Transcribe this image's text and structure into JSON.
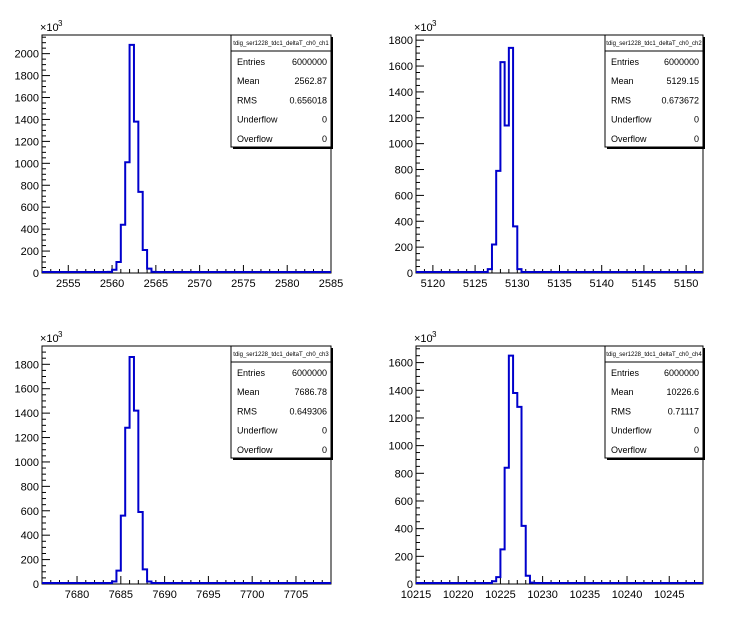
{
  "chart_data": [
    {
      "type": "histogram",
      "stats_title": "tdig_ser1228_tdc1_deltaT_ch0_ch1",
      "exponent_label": "×10",
      "exponent_power": "3",
      "xlim": [
        2552,
        2585
      ],
      "ylim": [
        0,
        2170
      ],
      "xticks": [
        2555,
        2560,
        2565,
        2570,
        2575,
        2580,
        2585
      ],
      "yticks": [
        0,
        200,
        400,
        600,
        800,
        1000,
        1200,
        1400,
        1600,
        1800,
        2000
      ],
      "bins": [
        {
          "x0": 2559.5,
          "x1": 2560.0,
          "y": 10
        },
        {
          "x0": 2560.0,
          "x1": 2560.5,
          "y": 30
        },
        {
          "x0": 2560.5,
          "x1": 2561.0,
          "y": 100
        },
        {
          "x0": 2561.0,
          "x1": 2561.5,
          "y": 440
        },
        {
          "x0": 2561.5,
          "x1": 2562.0,
          "y": 1010
        },
        {
          "x0": 2562.0,
          "x1": 2562.5,
          "y": 2080
        },
        {
          "x0": 2562.5,
          "x1": 2563.0,
          "y": 1380
        },
        {
          "x0": 2563.0,
          "x1": 2563.5,
          "y": 740
        },
        {
          "x0": 2563.5,
          "x1": 2564.0,
          "y": 210
        },
        {
          "x0": 2564.0,
          "x1": 2564.5,
          "y": 40
        },
        {
          "x0": 2564.5,
          "x1": 2565.0,
          "y": 10
        }
      ],
      "stats": [
        {
          "label": "Entries",
          "value": "6000000"
        },
        {
          "label": "Mean",
          "value": "2562.87"
        },
        {
          "label": "RMS",
          "value": "0.656018"
        },
        {
          "label": "Underflow",
          "value": "0"
        },
        {
          "label": "Overflow",
          "value": "0"
        }
      ]
    },
    {
      "type": "histogram",
      "stats_title": "tdig_ser1228_tdc1_deltaT_ch0_ch2",
      "exponent_label": "×10",
      "exponent_power": "3",
      "xlim": [
        5118,
        5152
      ],
      "ylim": [
        0,
        1840
      ],
      "xticks": [
        5120,
        5125,
        5130,
        5135,
        5140,
        5145,
        5150
      ],
      "yticks": [
        0,
        200,
        400,
        600,
        800,
        1000,
        1200,
        1400,
        1600,
        1800
      ],
      "bins": [
        {
          "x0": 5126.5,
          "x1": 5127.0,
          "y": 30
        },
        {
          "x0": 5127.0,
          "x1": 5127.5,
          "y": 220
        },
        {
          "x0": 5127.5,
          "x1": 5128.0,
          "y": 790
        },
        {
          "x0": 5128.0,
          "x1": 5128.5,
          "y": 1630
        },
        {
          "x0": 5128.5,
          "x1": 5129.0,
          "y": 1140
        },
        {
          "x0": 5129.0,
          "x1": 5129.5,
          "y": 1740
        },
        {
          "x0": 5129.5,
          "x1": 5130.0,
          "y": 360
        },
        {
          "x0": 5130.0,
          "x1": 5130.5,
          "y": 30
        }
      ],
      "stats": [
        {
          "label": "Entries",
          "value": "6000000"
        },
        {
          "label": "Mean",
          "value": "5129.15"
        },
        {
          "label": "RMS",
          "value": "0.673672"
        },
        {
          "label": "Underflow",
          "value": "0"
        },
        {
          "label": "Overflow",
          "value": "0"
        }
      ]
    },
    {
      "type": "histogram",
      "stats_title": "tdig_ser1228_tdc1_deltaT_ch0_ch3",
      "exponent_label": "×10",
      "exponent_power": "3",
      "xlim": [
        7676,
        7709
      ],
      "ylim": [
        0,
        1950
      ],
      "xticks": [
        7680,
        7685,
        7690,
        7695,
        7700,
        7705
      ],
      "yticks": [
        0,
        200,
        400,
        600,
        800,
        1000,
        1200,
        1400,
        1600,
        1800
      ],
      "bins": [
        {
          "x0": 7684.0,
          "x1": 7684.5,
          "y": 20
        },
        {
          "x0": 7684.5,
          "x1": 7685.0,
          "y": 110
        },
        {
          "x0": 7685.0,
          "x1": 7685.5,
          "y": 560
        },
        {
          "x0": 7685.5,
          "x1": 7686.0,
          "y": 1280
        },
        {
          "x0": 7686.0,
          "x1": 7686.5,
          "y": 1860
        },
        {
          "x0": 7686.5,
          "x1": 7687.0,
          "y": 1420
        },
        {
          "x0": 7687.0,
          "x1": 7687.5,
          "y": 590
        },
        {
          "x0": 7687.5,
          "x1": 7688.0,
          "y": 120
        },
        {
          "x0": 7688.0,
          "x1": 7688.5,
          "y": 20
        }
      ],
      "stats": [
        {
          "label": "Entries",
          "value": "6000000"
        },
        {
          "label": "Mean",
          "value": "7686.78"
        },
        {
          "label": "RMS",
          "value": "0.649306"
        },
        {
          "label": "Underflow",
          "value": "0"
        },
        {
          "label": "Overflow",
          "value": "0"
        }
      ]
    },
    {
      "type": "histogram",
      "stats_title": "tdig_ser1228_tdc1_deltaT_ch0_ch4",
      "exponent_label": "×10",
      "exponent_power": "3",
      "xlim": [
        10215,
        10249
      ],
      "ylim": [
        0,
        1720
      ],
      "xticks": [
        10215,
        10220,
        10225,
        10230,
        10235,
        10240,
        10245
      ],
      "yticks": [
        0,
        200,
        400,
        600,
        800,
        1000,
        1200,
        1400,
        1600
      ],
      "bins": [
        {
          "x0": 10224.0,
          "x1": 10224.5,
          "y": 20
        },
        {
          "x0": 10224.5,
          "x1": 10225.0,
          "y": 50
        },
        {
          "x0": 10225.0,
          "x1": 10225.5,
          "y": 250
        },
        {
          "x0": 10225.5,
          "x1": 10226.0,
          "y": 840
        },
        {
          "x0": 10226.0,
          "x1": 10226.5,
          "y": 1650
        },
        {
          "x0": 10226.5,
          "x1": 10227.0,
          "y": 1380
        },
        {
          "x0": 10227.0,
          "x1": 10227.5,
          "y": 1280
        },
        {
          "x0": 10227.5,
          "x1": 10228.0,
          "y": 420
        },
        {
          "x0": 10228.0,
          "x1": 10228.5,
          "y": 60
        },
        {
          "x0": 10228.5,
          "x1": 10229.0,
          "y": 10
        }
      ],
      "stats": [
        {
          "label": "Entries",
          "value": "6000000"
        },
        {
          "label": "Mean",
          "value": "10226.6"
        },
        {
          "label": "RMS",
          "value": "0.71117"
        },
        {
          "label": "Underflow",
          "value": "0"
        },
        {
          "label": "Overflow",
          "value": "0"
        }
      ]
    }
  ],
  "colors": {
    "histogram_line": "#0000cc",
    "axis": "#000000",
    "background": "#ffffff"
  }
}
